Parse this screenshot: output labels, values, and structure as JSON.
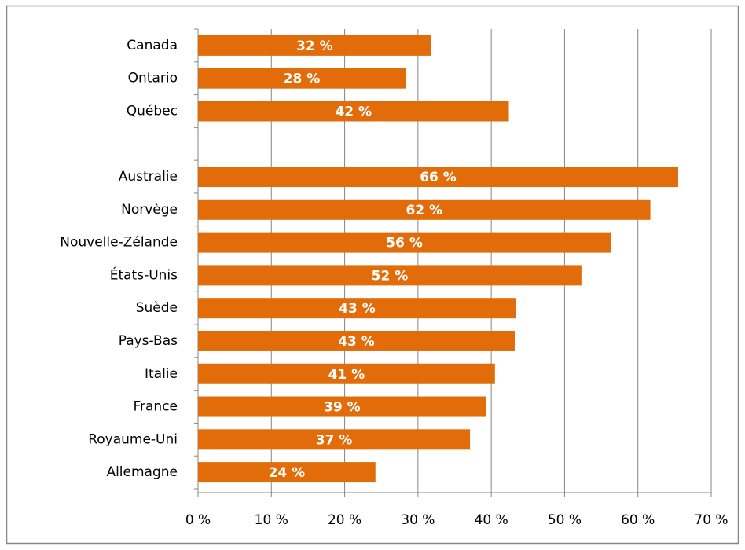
{
  "chart_data": {
    "type": "hbar",
    "categories": [
      "Canada",
      "Ontario",
      "Québec",
      null,
      "Australie",
      "Norvège",
      "Nouvelle-Zélande",
      "États-Unis",
      "Suède",
      "Pays-Bas",
      "Italie",
      "France",
      "Royaume-Uni",
      "Allemagne"
    ],
    "values": [
      31.8,
      28.3,
      42.4,
      null,
      65.5,
      61.7,
      56.3,
      52.3,
      43.4,
      43.2,
      40.5,
      39.3,
      37.1,
      24.2
    ],
    "value_labels": [
      "32 %",
      "28 %",
      "42 %",
      null,
      "66 %",
      "62 %",
      "56 %",
      "52 %",
      "43 %",
      "43 %",
      "41 %",
      "39 %",
      "37 %",
      "24 %"
    ],
    "color": "#e36c0a",
    "xlim": [
      0,
      70
    ],
    "xticks": [
      {
        "value": 0,
        "label": "0 %"
      },
      {
        "value": 10,
        "label": "10 %"
      },
      {
        "value": 20,
        "label": "20 %"
      },
      {
        "value": 30,
        "label": "30 %"
      },
      {
        "value": 40,
        "label": "40 %"
      },
      {
        "value": 50,
        "label": "50 %"
      },
      {
        "value": 60,
        "label": "60 %"
      },
      {
        "value": 70,
        "label": "70 %"
      }
    ],
    "grid": true
  }
}
